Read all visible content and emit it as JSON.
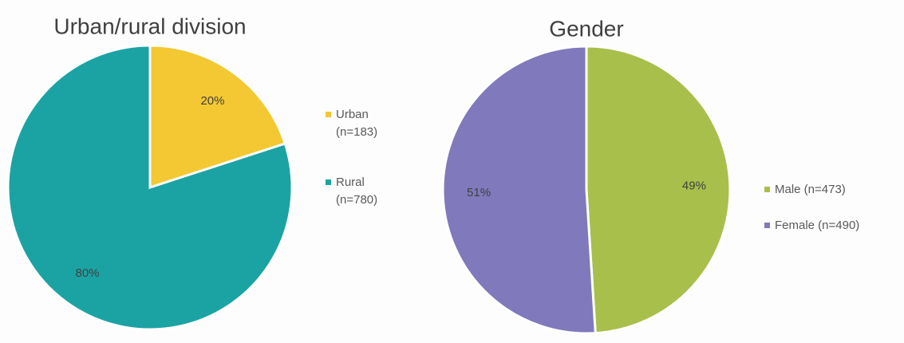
{
  "chart_data": [
    {
      "type": "pie",
      "title": "Urban/rural division",
      "categories": [
        "Urban (n=183)",
        "Rural (n=780)"
      ],
      "values": [
        20,
        80
      ],
      "value_labels": [
        "20%",
        "80%"
      ],
      "colors": [
        "#f4c832",
        "#1ba3a4"
      ]
    },
    {
      "type": "pie",
      "title": "Gender",
      "categories": [
        "Male (n=473)",
        "Female (n=490)"
      ],
      "values": [
        49,
        51
      ],
      "value_labels": [
        "49%",
        "51%"
      ],
      "colors": [
        "#a8bf4b",
        "#8079bb"
      ]
    }
  ]
}
